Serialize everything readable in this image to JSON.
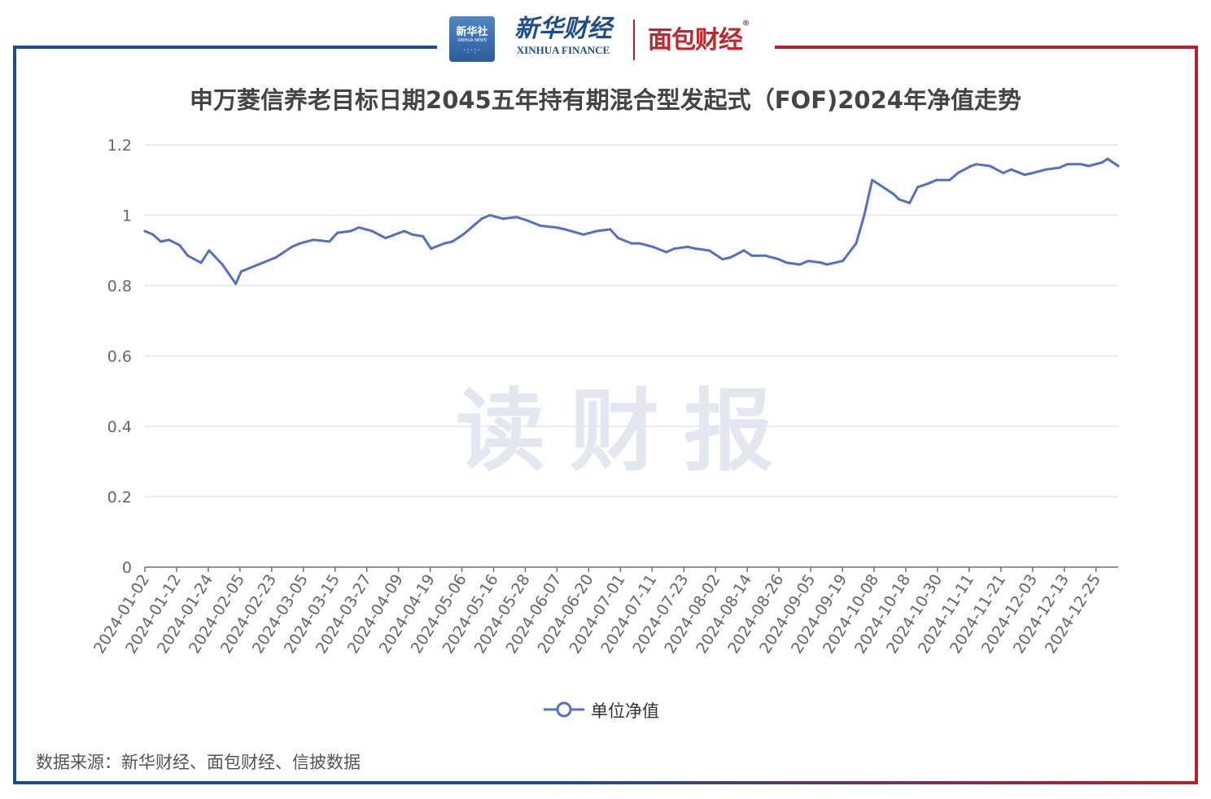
{
  "header": {
    "badge_cn": "新华社",
    "badge_en": "XINHUA NEWS",
    "brand_cn": "新华财经",
    "brand_en": "XINHUA FINANCE",
    "partner": "面包财经",
    "partner_mark": "®"
  },
  "watermark": "读财报",
  "source": "数据来源：新华财经、面包财经、信披数据",
  "colors": {
    "line": "#5470c6",
    "frame_blue": "#1e4d8c",
    "frame_red": "#b5202e",
    "grid": "#e0e6f1"
  },
  "chart_data": {
    "type": "line",
    "title": "申万菱信养老目标日期2045五年持有期混合型发起式（FOF)2024年净值走势",
    "ylim": [
      0,
      1.2
    ],
    "yticks": [
      "0",
      "0.2",
      "0.4",
      "0.6",
      "0.8",
      "1",
      "1.2"
    ],
    "xticks": [
      "2024-01-02",
      "2024-01-12",
      "2024-01-24",
      "2024-02-05",
      "2024-02-23",
      "2024-03-05",
      "2024-03-15",
      "2024-03-27",
      "2024-04-09",
      "2024-04-19",
      "2024-05-06",
      "2024-05-16",
      "2024-05-28",
      "2024-06-07",
      "2024-06-20",
      "2024-07-01",
      "2024-07-11",
      "2024-07-23",
      "2024-08-02",
      "2024-08-14",
      "2024-08-26",
      "2024-09-05",
      "2024-09-19",
      "2024-10-08",
      "2024-10-18",
      "2024-10-30",
      "2024-11-11",
      "2024-11-21",
      "2024-12-03",
      "2024-12-13",
      "2024-12-25"
    ],
    "grid": true,
    "legend_position": "bottom-center",
    "series": [
      {
        "name": "单位净值",
        "x": [
          "2024-01-02",
          "2024-01-05",
          "2024-01-08",
          "2024-01-11",
          "2024-01-15",
          "2024-01-18",
          "2024-01-23",
          "2024-01-26",
          "2024-01-31",
          "2024-02-05",
          "2024-02-07",
          "2024-02-20",
          "2024-02-26",
          "2024-02-29",
          "2024-03-05",
          "2024-03-11",
          "2024-03-14",
          "2024-03-19",
          "2024-03-22",
          "2024-03-27",
          "2024-04-01",
          "2024-04-08",
          "2024-04-11",
          "2024-04-15",
          "2024-04-18",
          "2024-04-23",
          "2024-04-26",
          "2024-04-30",
          "2024-05-07",
          "2024-05-10",
          "2024-05-15",
          "2024-05-20",
          "2024-05-24",
          "2024-05-29",
          "2024-06-04",
          "2024-06-07",
          "2024-06-14",
          "2024-06-19",
          "2024-06-24",
          "2024-06-27",
          "2024-07-02",
          "2024-07-05",
          "2024-07-10",
          "2024-07-15",
          "2024-07-18",
          "2024-07-23",
          "2024-07-26",
          "2024-07-31",
          "2024-08-05",
          "2024-08-08",
          "2024-08-13",
          "2024-08-16",
          "2024-08-21",
          "2024-08-26",
          "2024-08-29",
          "2024-09-03",
          "2024-09-06",
          "2024-09-11",
          "2024-09-13",
          "2024-09-19",
          "2024-09-24",
          "2024-09-27",
          "2024-09-30",
          "2024-10-08",
          "2024-10-10",
          "2024-10-14",
          "2024-10-17",
          "2024-10-21",
          "2024-10-24",
          "2024-10-29",
          "2024-11-01",
          "2024-11-06",
          "2024-11-08",
          "2024-11-13",
          "2024-11-18",
          "2024-11-21",
          "2024-11-26",
          "2024-11-29",
          "2024-12-04",
          "2024-12-09",
          "2024-12-12",
          "2024-12-17",
          "2024-12-20",
          "2024-12-25",
          "2024-12-27",
          "2024-12-31"
        ],
        "values": [
          0.955,
          0.945,
          0.925,
          0.93,
          0.915,
          0.885,
          0.865,
          0.9,
          0.86,
          0.805,
          0.84,
          0.88,
          0.91,
          0.92,
          0.93,
          0.925,
          0.95,
          0.955,
          0.965,
          0.955,
          0.935,
          0.955,
          0.945,
          0.94,
          0.905,
          0.92,
          0.925,
          0.945,
          0.99,
          1.0,
          0.99,
          0.995,
          0.985,
          0.97,
          0.965,
          0.96,
          0.945,
          0.955,
          0.96,
          0.935,
          0.92,
          0.92,
          0.91,
          0.895,
          0.905,
          0.91,
          0.905,
          0.9,
          0.875,
          0.88,
          0.9,
          0.885,
          0.885,
          0.875,
          0.865,
          0.86,
          0.87,
          0.865,
          0.86,
          0.87,
          0.92,
          1.0,
          1.1,
          1.06,
          1.045,
          1.035,
          1.08,
          1.09,
          1.1,
          1.1,
          1.12,
          1.14,
          1.145,
          1.14,
          1.12,
          1.13,
          1.115,
          1.12,
          1.13,
          1.135,
          1.145,
          1.145,
          1.14,
          1.15,
          1.16,
          1.14
        ]
      }
    ]
  }
}
